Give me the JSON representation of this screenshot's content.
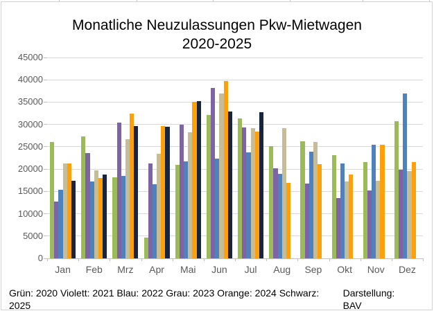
{
  "title": {
    "line1": "Monatliche Neuzulassungen Pkw-Mietwagen",
    "line2": "2020-2025"
  },
  "footer": {
    "legend": "Grün: 2020 Violett: 2021 Blau: 2022 Grau: 2023 Orange: 2024 Schwarz: 2025",
    "credit": "Darstellung: BAV"
  },
  "chart_data": {
    "type": "bar",
    "title": "Monatliche Neuzulassungen Pkw-Mietwagen 2020-2025",
    "categories": [
      "Jan",
      "Feb",
      "Mrz",
      "Apr",
      "Mai",
      "Jun",
      "Jul",
      "Aug",
      "Sep",
      "Okt",
      "Nov",
      "Dez"
    ],
    "series": [
      {
        "name": "2020",
        "legend_label": "Grün: 2020",
        "color": "#9bbb59",
        "values": [
          26100,
          27300,
          18200,
          4700,
          20900,
          32100,
          31300,
          25200,
          26300,
          23100,
          21500,
          30700
        ]
      },
      {
        "name": "2021",
        "legend_label": "Violett: 2021",
        "color": "#7e64a5",
        "values": [
          12700,
          23600,
          30400,
          21300,
          29900,
          38100,
          29300,
          20200,
          16700,
          13500,
          15200,
          19800
        ]
      },
      {
        "name": "2022",
        "legend_label": "Blau: 2022",
        "color": "#4f81bd",
        "values": [
          15400,
          17300,
          18400,
          16600,
          21800,
          22300,
          23800,
          19000,
          23900,
          21200,
          25500,
          37000
        ]
      },
      {
        "name": "2023",
        "legend_label": "Grau: 2023",
        "color": "#c4bd97",
        "values": [
          21200,
          19700,
          26700,
          23500,
          28300,
          36900,
          29100,
          29100,
          26000,
          17300,
          17400,
          19500
        ]
      },
      {
        "name": "2024",
        "legend_label": "Orange: 2024",
        "color": "#ffa00b",
        "values": [
          21300,
          18000,
          32400,
          29600,
          35000,
          39800,
          28400,
          16900,
          21100,
          18700,
          25500,
          21500
        ]
      },
      {
        "name": "2025",
        "legend_label": "Schwarz: 2025",
        "color": "#17253e",
        "values": [
          17400,
          18700,
          29600,
          29500,
          35200,
          32900,
          32800,
          null,
          null,
          null,
          null,
          null
        ]
      }
    ],
    "ylim": [
      0,
      45000
    ],
    "ytick_step": 5000,
    "ytick_labels": [
      "0",
      "5000",
      "10000",
      "15000",
      "20000",
      "25000",
      "30000",
      "35000",
      "40000",
      "45000"
    ],
    "grid": true,
    "legend_position": "bottom-text",
    "axis_color": "#bfbfbf",
    "grid_color": "#d9d9d9",
    "tick_label_color": "#595959"
  }
}
